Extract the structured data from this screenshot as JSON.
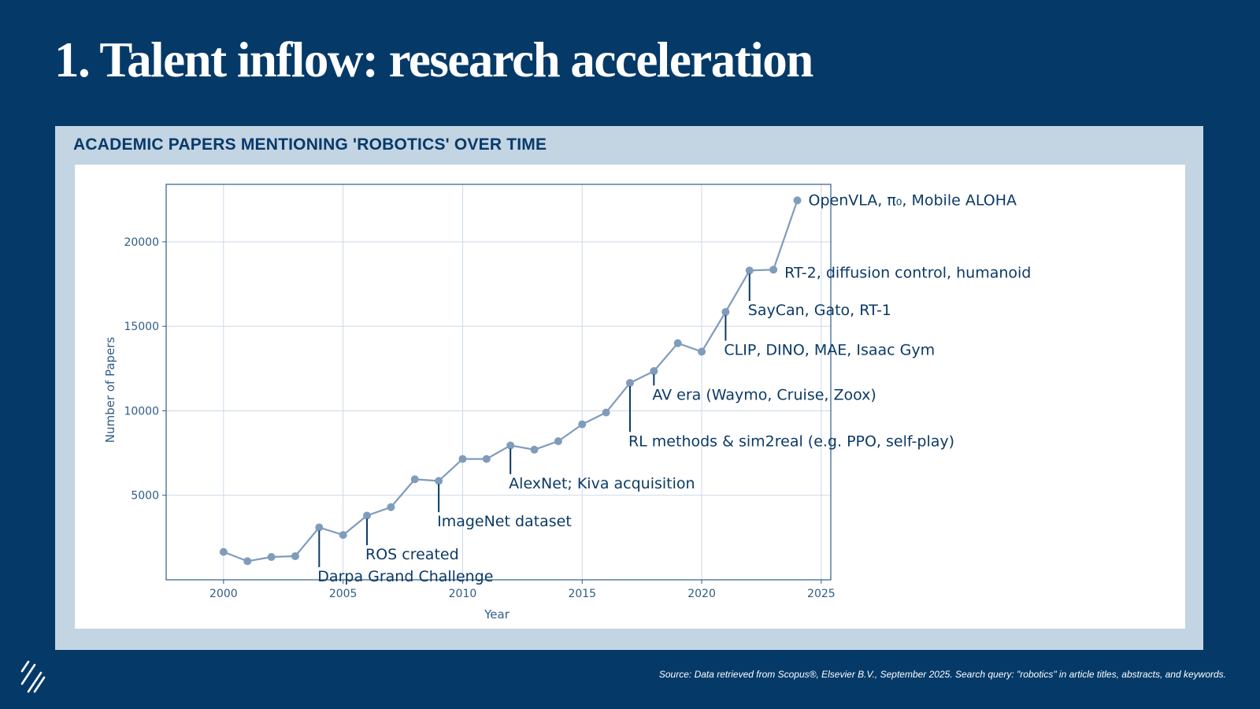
{
  "slide": {
    "title": "1. Talent inflow: research acceleration",
    "source": "Source: Data retrieved from Scopus®, Elsevier B.V., September 2025. Search query: \"robotics\" in article titles, abstracts, and keywords.",
    "logo_icon": "diagonal-slashes-logo-icon"
  },
  "panel": {
    "heading": "ACADEMIC PAPERS MENTIONING 'ROBOTICS' OVER TIME"
  },
  "colors": {
    "background": "#053a68",
    "panel": "#c3d4e3",
    "line": "#7f9cbb",
    "annotation": "#0b3a66"
  },
  "chart_data": {
    "type": "line",
    "title": "ACADEMIC PAPERS MENTIONING 'ROBOTICS' OVER TIME",
    "xlabel": "Year",
    "ylabel": "Number of Papers",
    "xlim": [
      1997.6,
      2025.4
    ],
    "ylim": [
      0,
      23400
    ],
    "x_ticks": [
      2000,
      2005,
      2010,
      2015,
      2020,
      2025
    ],
    "y_ticks": [
      5000,
      10000,
      15000,
      20000
    ],
    "grid": true,
    "x": [
      2000,
      2001,
      2002,
      2003,
      2004,
      2005,
      2006,
      2007,
      2008,
      2009,
      2010,
      2011,
      2012,
      2013,
      2014,
      2015,
      2016,
      2017,
      2018,
      2019,
      2020,
      2021,
      2022,
      2023,
      2024
    ],
    "series": [
      {
        "name": "Number of Papers",
        "values": [
          1650,
          1100,
          1350,
          1400,
          3100,
          2650,
          3800,
          4300,
          5950,
          5850,
          7150,
          7150,
          7950,
          7700,
          8200,
          9200,
          9900,
          11650,
          12350,
          14000,
          13500,
          15850,
          18300,
          18350,
          22450
        ]
      }
    ],
    "annotations": [
      {
        "year": 2004,
        "text": "Darpa Grand Challenge",
        "text_at_y": 750
      },
      {
        "year": 2006,
        "text": "ROS created",
        "text_at_y": 2050
      },
      {
        "year": 2009,
        "text": "ImageNet dataset",
        "text_at_y": 4000
      },
      {
        "year": 2012,
        "text": "AlexNet; Kiva acquisition",
        "text_at_y": 6250
      },
      {
        "year": 2017,
        "text": "RL methods & sim2real (e.g. PPO, self-play)",
        "text_at_y": 8750
      },
      {
        "year": 2018,
        "text": "AV era (Waymo, Cruise, Zoox)",
        "text_at_y": 11500
      },
      {
        "year": 2021,
        "text": "CLIP, DINO, MAE, Isaac Gym",
        "text_at_y": 14150
      },
      {
        "year": 2022,
        "text": "SayCan, Gato, RT-1",
        "text_at_y": 16500
      },
      {
        "year": 2023,
        "text": "RT-2, diffusion control, humanoid",
        "text_at_y": 18150
      },
      {
        "year": 2024,
        "text": "OpenVLA, π₀, Mobile ALOHA",
        "text_at_y": 22450
      }
    ]
  }
}
